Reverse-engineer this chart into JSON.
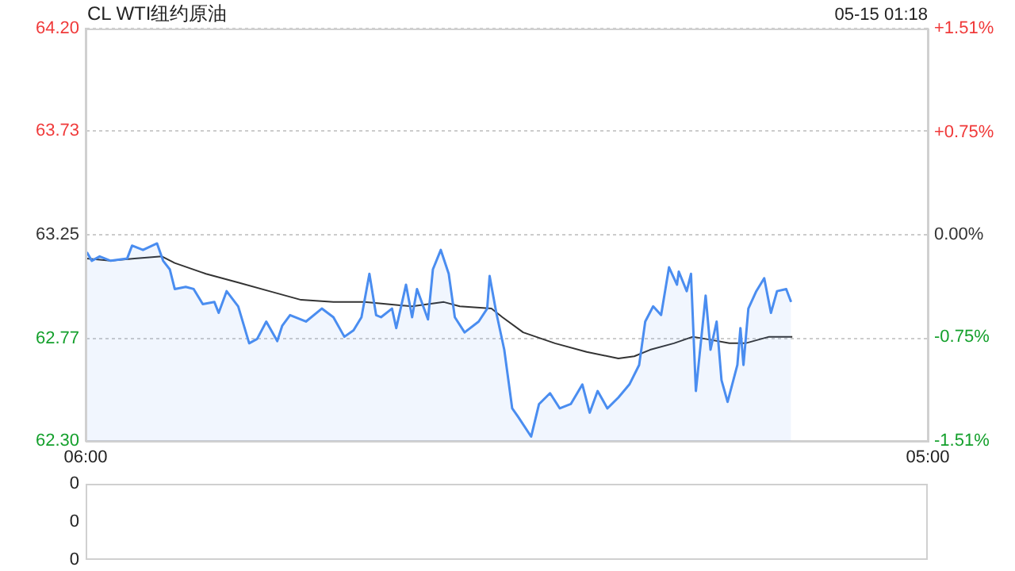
{
  "chart_data": [
    {
      "type": "line",
      "title": "CL WTI纽约原油",
      "subtitle": "05-15 01:18",
      "xlim": [
        "--05-14T06:00",
        "--05-15T05:00"
      ],
      "xticks": [
        {
          "value": "--05-14T06:00",
          "label": "06:00"
        },
        {
          "value": "--05-15T05:00",
          "label": "05:00"
        }
      ],
      "ylim": [
        62.3,
        64.2
      ],
      "yticks": [
        {
          "value": 62.3,
          "label": "62.30"
        },
        62.77,
        63.25,
        63.73,
        {
          "value": 64.2,
          "label": "64.20"
        }
      ],
      "y2lim": [
        -1.51,
        1.51
      ],
      "y2ticks": [
        {
          "value": -1.51,
          "label": "-1.51%"
        },
        {
          "value": -0.75,
          "label": "-0.75%"
        },
        {
          "value": 0,
          "label": "0.00%"
        },
        {
          "value": 0.75,
          "label": "+0.75%"
        },
        {
          "value": 1.51,
          "label": "+1.51%"
        }
      ],
      "grid": "y",
      "series": [
        {
          "type": "area",
          "color": "#4a8df0",
          "x": [
            "--05-14T06:02",
            "--05-14T06:10",
            "--05-14T06:23",
            "--05-14T06:41",
            "--05-14T07:08",
            "--05-14T07:16",
            "--05-14T07:34",
            "--05-14T07:57",
            "--05-14T08:07",
            "--05-14T08:18",
            "--05-14T08:26",
            "--05-14T08:44",
            "--05-14T08:57",
            "--05-14T09:12",
            "--05-14T09:31",
            "--05-14T09:38",
            "--05-14T09:51",
            "--05-14T10:10",
            "--05-14T10:28",
            "--05-14T10:41",
            "--05-14T10:56",
            "--05-14T11:14",
            "--05-14T11:22",
            "--05-14T11:35",
            "--05-14T12:01",
            "--05-14T12:27",
            "--05-14T12:46",
            "--05-14T13:04",
            "--05-14T13:19",
            "--05-14T13:32",
            "--05-14T13:45",
            "--05-14T13:56",
            "--05-14T14:04",
            "--05-14T14:22",
            "--05-14T14:29",
            "--05-14T14:45",
            "--05-14T14:55",
            "--05-14T15:03",
            "--05-14T15:21",
            "--05-14T15:29",
            "--05-14T15:42",
            "--05-14T15:55",
            "--05-14T16:05",
            "--05-14T16:21",
            "--05-14T16:44",
            "--05-14T16:58",
            "--05-14T17:02",
            "--05-14T17:13",
            "--05-14T17:26",
            "--05-14T17:39",
            "--05-14T17:49",
            "--05-14T18:10",
            "--05-14T18:23",
            "--05-14T18:41",
            "--05-14T18:57",
            "--05-14T19:15",
            "--05-14T19:34",
            "--05-14T19:46",
            "--05-14T19:59",
            "--05-14T20:15",
            "--05-14T20:33",
            "--05-14T20:51",
            "--05-14T21:07",
            "--05-14T21:17",
            "--05-14T21:30",
            "--05-14T21:43",
            "--05-14T21:56",
            "--05-14T22:09",
            "--05-14T22:12",
            "--05-14T22:25",
            "--05-14T22:32",
            "--05-14T22:40",
            "--05-14T22:56",
            "--05-14T23:04",
            "--05-14T23:14",
            "--05-14T23:22",
            "--05-14T23:32",
            "--05-14T23:48",
            "--05-14T23:53",
            "--05-14T23:58",
            "--05-15T00:06",
            "--05-15T00:19",
            "--05-15T00:32",
            "--05-15T00:43",
            "--05-15T00:53",
            "--05-15T01:08",
            "--05-15T01:16"
          ],
          "values": [
            63.17,
            63.13,
            63.15,
            63.13,
            63.14,
            63.2,
            63.18,
            63.21,
            63.13,
            63.09,
            63.0,
            63.01,
            63.0,
            62.93,
            62.94,
            62.89,
            62.99,
            62.92,
            62.75,
            62.77,
            62.85,
            62.76,
            62.83,
            62.88,
            62.85,
            62.91,
            62.87,
            62.78,
            62.81,
            62.87,
            63.07,
            62.88,
            62.87,
            62.91,
            62.82,
            63.02,
            62.87,
            63.0,
            62.86,
            63.09,
            63.18,
            63.07,
            62.87,
            62.8,
            62.85,
            62.91,
            63.06,
            62.89,
            62.72,
            62.45,
            62.41,
            62.32,
            62.47,
            62.52,
            62.45,
            62.47,
            62.56,
            62.43,
            62.53,
            62.45,
            62.5,
            62.56,
            62.65,
            62.85,
            62.92,
            62.88,
            63.1,
            63.02,
            63.08,
            62.99,
            63.07,
            62.53,
            62.97,
            62.72,
            62.85,
            62.58,
            62.48,
            62.65,
            62.82,
            62.65,
            62.91,
            62.99,
            63.05,
            62.89,
            62.99,
            63.0,
            62.94
          ]
        },
        {
          "type": "line",
          "color": "#333333",
          "x": [
            "--05-14T06:02",
            "--05-14T06:41",
            "--05-14T07:20",
            "--05-14T08:05",
            "--05-14T08:26",
            "--05-14T09:17",
            "--05-14T10:10",
            "--05-14T11:01",
            "--05-14T11:53",
            "--05-14T12:46",
            "--05-14T13:37",
            "--05-14T14:55",
            "--05-14T15:47",
            "--05-14T16:13",
            "--05-14T17:05",
            "--05-14T17:23",
            "--05-14T17:57",
            "--05-14T18:49",
            "--05-14T19:41",
            "--05-14T20:33",
            "--05-14T20:59",
            "--05-14T21:25",
            "--05-14T22:04",
            "--05-14T22:35",
            "--05-14T22:56",
            "--05-14T23:35",
            "--05-15T00:01",
            "--05-15T00:40",
            "--05-15T01:18"
          ],
          "values": [
            63.14,
            63.13,
            63.14,
            63.15,
            63.12,
            63.07,
            63.03,
            62.99,
            62.95,
            62.94,
            62.94,
            62.92,
            62.94,
            62.92,
            62.91,
            62.87,
            62.8,
            62.75,
            62.71,
            62.68,
            62.69,
            62.72,
            62.75,
            62.78,
            62.77,
            62.75,
            62.75,
            62.78,
            62.78
          ]
        }
      ]
    },
    {
      "type": "other",
      "annotations": [
        "0",
        "0",
        "0"
      ]
    }
  ]
}
